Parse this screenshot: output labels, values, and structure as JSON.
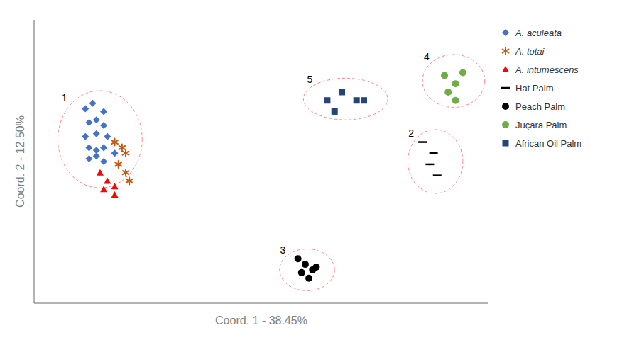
{
  "chart_data": {
    "type": "scatter",
    "xlabel": "Coord. 1 - 38.45%",
    "ylabel": "Coord. 2 - 12.50%",
    "xlim": [
      -0.52,
      0.72
    ],
    "ylim": [
      -0.52,
      0.5
    ],
    "xticks": [
      -0.4,
      -0.2,
      0.0,
      0.2,
      0.4,
      0.6
    ],
    "yticks": [
      -0.4,
      -0.2,
      0.0,
      0.2,
      0.4
    ],
    "grid": true,
    "tick_labels": false,
    "legend": "right",
    "series": [
      {
        "name": "A. aculeata",
        "color": "#4472C4",
        "marker": "diamond",
        "values": [
          [
            -0.38,
            0.18
          ],
          [
            -0.36,
            0.2
          ],
          [
            -0.33,
            0.17
          ],
          [
            -0.37,
            0.13
          ],
          [
            -0.35,
            0.14
          ],
          [
            -0.33,
            0.12
          ],
          [
            -0.38,
            0.08
          ],
          [
            -0.35,
            0.09
          ],
          [
            -0.32,
            0.08
          ],
          [
            -0.37,
            0.04
          ],
          [
            -0.35,
            0.03
          ],
          [
            -0.33,
            0.04
          ],
          [
            -0.37,
            0.0
          ],
          [
            -0.35,
            0.01
          ],
          [
            -0.33,
            -0.01
          ],
          [
            -0.3,
            0.02
          ]
        ]
      },
      {
        "name": "A. totai",
        "color": "#C55A11",
        "marker": "asterisk",
        "values": [
          [
            -0.3,
            0.06
          ],
          [
            -0.28,
            0.04
          ],
          [
            -0.27,
            0.02
          ],
          [
            -0.29,
            -0.02
          ],
          [
            -0.27,
            -0.05
          ],
          [
            -0.26,
            -0.08
          ]
        ]
      },
      {
        "name": "A. intumescens",
        "color": "#FF0000",
        "marker": "triangle",
        "values": [
          [
            -0.34,
            -0.05
          ],
          [
            -0.32,
            -0.08
          ],
          [
            -0.3,
            -0.1
          ],
          [
            -0.33,
            -0.11
          ],
          [
            -0.3,
            -0.13
          ]
        ]
      },
      {
        "name": "Hat Palm",
        "color": "#000000",
        "marker": "hline",
        "values": [
          [
            0.54,
            0.06
          ],
          [
            0.57,
            0.02
          ],
          [
            0.56,
            -0.02
          ],
          [
            0.58,
            -0.06
          ]
        ]
      },
      {
        "name": "Peach Palm",
        "color": "#000000",
        "marker": "circle",
        "values": [
          [
            0.2,
            -0.36
          ],
          [
            0.22,
            -0.38
          ],
          [
            0.24,
            -0.4
          ],
          [
            0.21,
            -0.41
          ],
          [
            0.23,
            -0.43
          ],
          [
            0.25,
            -0.39
          ]
        ]
      },
      {
        "name": "Juçara Palm",
        "color": "#70AD47",
        "marker": "circle",
        "values": [
          [
            0.6,
            0.3
          ],
          [
            0.63,
            0.27
          ],
          [
            0.65,
            0.31
          ],
          [
            0.61,
            0.24
          ],
          [
            0.63,
            0.21
          ]
        ]
      },
      {
        "name": "African Oil Palm",
        "color": "#264478",
        "marker": "square",
        "values": [
          [
            0.28,
            0.21
          ],
          [
            0.32,
            0.24
          ],
          [
            0.36,
            0.21
          ],
          [
            0.3,
            0.17
          ],
          [
            0.38,
            0.21
          ]
        ]
      }
    ],
    "clusters": [
      {
        "label": "1",
        "cx": -0.34,
        "cy": 0.07,
        "rx": 0.115,
        "ry": 0.175
      },
      {
        "label": "2",
        "cx": 0.575,
        "cy": -0.01,
        "rx": 0.075,
        "ry": 0.115
      },
      {
        "label": "3",
        "cx": 0.225,
        "cy": -0.4,
        "rx": 0.075,
        "ry": 0.075
      },
      {
        "label": "4",
        "cx": 0.625,
        "cy": 0.28,
        "rx": 0.085,
        "ry": 0.095
      },
      {
        "label": "5",
        "cx": 0.33,
        "cy": 0.215,
        "rx": 0.115,
        "ry": 0.075
      }
    ],
    "cluster_color": "#FF8080"
  }
}
